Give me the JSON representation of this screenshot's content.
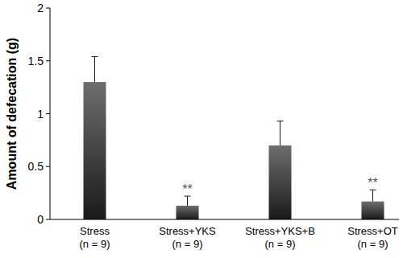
{
  "chart_data": {
    "type": "bar",
    "y_label": "Amount of defecation (g)",
    "categories": [
      "Stress\n(n = 9)",
      "Stress+YKS\n(n = 9)",
      "Stress+YKS+B\n(n = 9)",
      "Stress+OT\n(n = 9)"
    ],
    "values": [
      1.3,
      0.13,
      0.7,
      0.17
    ],
    "errors": [
      0.24,
      0.09,
      0.23,
      0.11
    ],
    "annotations": [
      null,
      "**",
      null,
      "**"
    ],
    "color": "#1a1a1a",
    "ylim": [
      0,
      2
    ],
    "yticks": [
      0,
      0.5,
      1,
      1.5,
      2
    ],
    "grid": false
  }
}
